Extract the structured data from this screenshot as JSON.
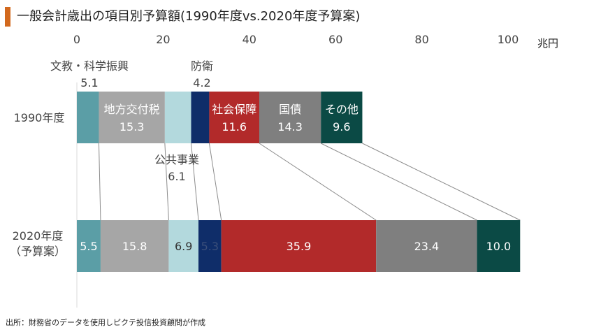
{
  "title": "一般会計歳出の項目別予算額(1990年度vs.2020年度予算案)",
  "source": "出所：財務省のデータを使用しピクテ投信投資顧問が作成",
  "chart_data": {
    "type": "bar",
    "orientation": "horizontal",
    "stacked": true,
    "unit": "兆円",
    "xlim": [
      0,
      100
    ],
    "ticks": [
      "0",
      "20",
      "40",
      "60",
      "80",
      "100"
    ],
    "categories": [
      "1990年度",
      "2020年度\n（予算案）"
    ],
    "series": [
      {
        "name": "文教・科学振興",
        "values": [
          5.1,
          5.5
        ],
        "color": "#5b9ea6"
      },
      {
        "name": "地方交付税",
        "values": [
          15.3,
          15.8
        ],
        "color": "#a6a6a6"
      },
      {
        "name": "公共事業",
        "values": [
          6.1,
          6.9
        ],
        "color": "#b3d9dd"
      },
      {
        "name": "防衛",
        "values": [
          4.2,
          5.3
        ],
        "color": "#0f2d69"
      },
      {
        "name": "社会保障",
        "values": [
          11.6,
          35.9
        ],
        "color": "#b22a2a"
      },
      {
        "name": "国債",
        "values": [
          14.3,
          23.4
        ],
        "color": "#7f7f7f"
      },
      {
        "name": "その他",
        "values": [
          9.6,
          10.0
        ],
        "color": "#0b4a45"
      }
    ]
  }
}
